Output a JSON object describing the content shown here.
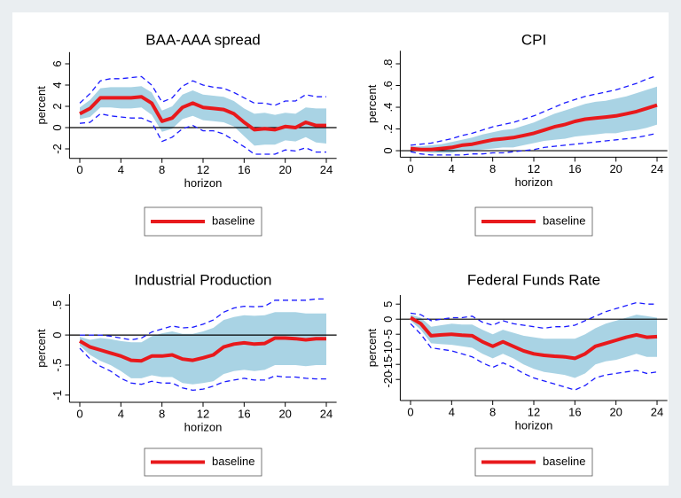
{
  "chart_data": [
    {
      "type": "line",
      "title": "BAA-AAA spread",
      "xlabel": "horizon",
      "ylabel": "percent",
      "x": [
        0,
        1,
        2,
        3,
        4,
        5,
        6,
        7,
        8,
        9,
        10,
        11,
        12,
        13,
        14,
        15,
        16,
        17,
        18,
        19,
        20,
        21,
        22,
        23,
        24
      ],
      "xlim": [
        -1,
        25
      ],
      "ylim": [
        -2.9,
        7.1
      ],
      "xticks": [
        0,
        4,
        8,
        12,
        16,
        20,
        24
      ],
      "yticks": [
        -2,
        0,
        2,
        4,
        6
      ],
      "yline": 0,
      "series": [
        {
          "name": "baseline",
          "color": "#e8191c",
          "values": [
            1.3,
            1.8,
            2.8,
            2.8,
            2.8,
            2.8,
            2.9,
            2.3,
            0.6,
            0.9,
            1.9,
            2.3,
            1.9,
            1.8,
            1.7,
            1.3,
            0.5,
            -0.2,
            -0.1,
            -0.2,
            0.1,
            0.0,
            0.5,
            0.2,
            0.2
          ]
        }
      ],
      "band": {
        "color": "#a9d3e4",
        "upper": [
          1.9,
          2.6,
          3.7,
          3.8,
          3.8,
          3.8,
          3.9,
          3.3,
          1.6,
          2,
          3.1,
          3.5,
          3.1,
          3,
          2.9,
          2.5,
          1.8,
          1.3,
          1.4,
          1.2,
          1.4,
          1.3,
          1.9,
          1.8,
          1.8
        ],
        "lower": [
          0.8,
          1,
          1.9,
          1.9,
          1.8,
          1.8,
          1.9,
          1.2,
          -0.4,
          -0.1,
          0.8,
          1.1,
          0.7,
          0.6,
          0.5,
          0.1,
          -0.8,
          -1.7,
          -1.6,
          -1.6,
          -1.2,
          -1.3,
          -0.9,
          -1.4,
          -1.5
        ]
      },
      "interval": {
        "color": "#1a1aff",
        "upper": [
          2.3,
          3.2,
          4.4,
          4.6,
          4.6,
          4.7,
          4.8,
          4,
          2.4,
          2.8,
          3.9,
          4.4,
          4,
          3.8,
          3.7,
          3.3,
          2.8,
          2.3,
          2.3,
          2.1,
          2.5,
          2.5,
          3.1,
          2.9,
          2.9
        ],
        "lower": [
          0.4,
          0.5,
          1.3,
          1.1,
          1,
          0.9,
          0.9,
          0.5,
          -1.3,
          -0.9,
          -0.1,
          0.2,
          -0.3,
          -0.3,
          -0.6,
          -1.2,
          -1.8,
          -2.5,
          -2.5,
          -2.5,
          -2.1,
          -2.2,
          -1.9,
          -2.3,
          -2.3
        ]
      }
    },
    {
      "type": "line",
      "title": "CPI",
      "xlabel": "horizon",
      "ylabel": "percent",
      "x": [
        0,
        1,
        2,
        3,
        4,
        5,
        6,
        7,
        8,
        9,
        10,
        11,
        12,
        13,
        14,
        15,
        16,
        17,
        18,
        19,
        20,
        21,
        22,
        23,
        24
      ],
      "xlim": [
        -1,
        25
      ],
      "ylim": [
        -0.06,
        0.92
      ],
      "xticks": [
        0,
        4,
        8,
        12,
        16,
        20,
        24
      ],
      "yticks": [
        0,
        {
          "value": 0.2,
          "label": ".2"
        },
        {
          "value": 0.4,
          "label": ".4"
        },
        {
          "value": 0.6,
          "label": ".6"
        },
        {
          "value": 0.8,
          "label": ".8"
        }
      ],
      "yline": 0,
      "series": [
        {
          "name": "baseline",
          "color": "#e8191c",
          "values": [
            0.02,
            0.01,
            0.01,
            0.02,
            0.03,
            0.05,
            0.06,
            0.08,
            0.1,
            0.11,
            0.12,
            0.14,
            0.16,
            0.19,
            0.22,
            0.24,
            0.27,
            0.29,
            0.3,
            0.31,
            0.32,
            0.34,
            0.36,
            0.39,
            0.42
          ]
        }
      ],
      "band": {
        "color": "#a9d3e4",
        "upper": [
          0.04,
          0.04,
          0.05,
          0.06,
          0.08,
          0.1,
          0.12,
          0.15,
          0.17,
          0.19,
          0.2,
          0.23,
          0.26,
          0.3,
          0.34,
          0.37,
          0.4,
          0.43,
          0.45,
          0.46,
          0.48,
          0.5,
          0.53,
          0.56,
          0.59
        ],
        "lower": [
          0,
          -0.01,
          -0.02,
          -0.02,
          -0.02,
          0,
          0,
          0.01,
          0.02,
          0.03,
          0.03,
          0.05,
          0.07,
          0.09,
          0.1,
          0.11,
          0.13,
          0.14,
          0.15,
          0.16,
          0.16,
          0.18,
          0.19,
          0.21,
          0.24
        ]
      },
      "interval": {
        "color": "#1a1aff",
        "upper": [
          0.05,
          0.06,
          0.07,
          0.09,
          0.11,
          0.14,
          0.16,
          0.19,
          0.22,
          0.24,
          0.26,
          0.29,
          0.32,
          0.36,
          0.4,
          0.44,
          0.47,
          0.5,
          0.52,
          0.54,
          0.56,
          0.59,
          0.62,
          0.66,
          0.69
        ],
        "lower": [
          -0.01,
          -0.03,
          -0.04,
          -0.04,
          -0.04,
          -0.04,
          -0.03,
          -0.03,
          -0.02,
          -0.02,
          -0.01,
          0,
          0.01,
          0.03,
          0.04,
          0.05,
          0.06,
          0.07,
          0.08,
          0.09,
          0.1,
          0.11,
          0.12,
          0.14,
          0.16
        ]
      }
    },
    {
      "type": "line",
      "title": "Industrial Production",
      "xlabel": "horizon",
      "ylabel": "percent",
      "x": [
        0,
        1,
        2,
        3,
        4,
        5,
        6,
        7,
        8,
        9,
        10,
        11,
        12,
        13,
        14,
        15,
        16,
        17,
        18,
        19,
        20,
        21,
        22,
        23,
        24
      ],
      "xlim": [
        -1,
        25
      ],
      "ylim": [
        -1.12,
        0.68
      ],
      "xticks": [
        0,
        4,
        8,
        12,
        16,
        20,
        24
      ],
      "yticks": [
        -1,
        {
          "value": -0.5,
          "label": "-.5"
        },
        0,
        {
          "value": 0.5,
          "label": ".5"
        }
      ],
      "yline": 0,
      "series": [
        {
          "name": "baseline",
          "color": "#e8191c",
          "values": [
            -0.1,
            -0.2,
            -0.25,
            -0.3,
            -0.35,
            -0.42,
            -0.43,
            -0.35,
            -0.35,
            -0.33,
            -0.4,
            -0.42,
            -0.38,
            -0.33,
            -0.2,
            -0.15,
            -0.13,
            -0.15,
            -0.14,
            -0.05,
            -0.05,
            -0.06,
            -0.08,
            -0.06,
            -0.06
          ]
        }
      ],
      "band": {
        "color": "#a9d3e4",
        "upper": [
          -0.03,
          -0.08,
          -0.05,
          -0.07,
          -0.1,
          -0.12,
          -0.12,
          -0.02,
          0.03,
          0.06,
          0.02,
          0.02,
          0.06,
          0.12,
          0.25,
          0.3,
          0.33,
          0.32,
          0.33,
          0.38,
          0.38,
          0.38,
          0.36,
          0.36,
          0.36
        ],
        "lower": [
          -0.18,
          -0.33,
          -0.43,
          -0.5,
          -0.6,
          -0.72,
          -0.72,
          -0.67,
          -0.7,
          -0.7,
          -0.8,
          -0.82,
          -0.8,
          -0.77,
          -0.65,
          -0.6,
          -0.58,
          -0.6,
          -0.58,
          -0.5,
          -0.5,
          -0.5,
          -0.52,
          -0.5,
          -0.5
        ]
      },
      "interval": {
        "color": "#1a1aff",
        "upper": [
          0,
          0,
          0,
          -0.02,
          -0.05,
          -0.08,
          -0.05,
          0.05,
          0.1,
          0.15,
          0.12,
          0.13,
          0.18,
          0.25,
          0.38,
          0.45,
          0.48,
          0.47,
          0.48,
          0.58,
          0.58,
          0.58,
          0.58,
          0.6,
          0.6
        ],
        "lower": [
          -0.22,
          -0.4,
          -0.52,
          -0.6,
          -0.72,
          -0.8,
          -0.82,
          -0.77,
          -0.8,
          -0.8,
          -0.88,
          -0.92,
          -0.9,
          -0.85,
          -0.78,
          -0.75,
          -0.72,
          -0.75,
          -0.75,
          -0.68,
          -0.7,
          -0.7,
          -0.72,
          -0.73,
          -0.73
        ]
      }
    },
    {
      "type": "line",
      "title": "Federal Funds Rate",
      "xlabel": "horizon",
      "ylabel": "percent",
      "x": [
        0,
        1,
        2,
        3,
        4,
        5,
        6,
        7,
        8,
        9,
        10,
        11,
        12,
        13,
        14,
        15,
        16,
        17,
        18,
        19,
        20,
        21,
        22,
        23,
        24
      ],
      "xlim": [
        -1,
        25
      ],
      "ylim": [
        -27,
        8
      ],
      "xticks": [
        0,
        4,
        8,
        12,
        16,
        20,
        24
      ],
      "yticks": [
        -20,
        -15,
        -10,
        -5,
        0,
        5
      ],
      "yline": 0,
      "series": [
        {
          "name": "baseline",
          "color": "#e8191c",
          "values": [
            0.5,
            -1.5,
            -5.5,
            -5.2,
            -5,
            -5.3,
            -5.5,
            -7.5,
            -9,
            -7.5,
            -9,
            -10.5,
            -11.5,
            -12,
            -12.3,
            -12.5,
            -13,
            -11.5,
            -9,
            -8,
            -7,
            -6,
            -5.2,
            -6,
            -5.8
          ]
        }
      ],
      "band": {
        "color": "#a9d3e4",
        "upper": [
          1.5,
          0.5,
          -2.5,
          -2,
          -1.5,
          -1.8,
          -1.8,
          -3.5,
          -5,
          -3.5,
          -4.5,
          -5.5,
          -6,
          -6.5,
          -6.5,
          -6.5,
          -6.5,
          -5,
          -3,
          -1.5,
          -0.5,
          0.5,
          1.5,
          1,
          0.5
        ],
        "lower": [
          -0.5,
          -3.5,
          -8,
          -8.3,
          -8.5,
          -9,
          -9.5,
          -11.5,
          -13,
          -11.5,
          -13,
          -15,
          -16.5,
          -17.5,
          -18,
          -18.5,
          -19.5,
          -18,
          -15,
          -14,
          -13.5,
          -12.5,
          -11.5,
          -12.5,
          -12.5
        ]
      },
      "interval": {
        "color": "#1a1aff",
        "upper": [
          2,
          1.5,
          -0.5,
          0,
          0.5,
          0.5,
          1,
          -1,
          -2,
          -0.5,
          -1.5,
          -2,
          -2.5,
          -3,
          -2.5,
          -2.5,
          -2,
          -0.5,
          1,
          2.5,
          3.5,
          4.5,
          5.5,
          5,
          5
        ],
        "lower": [
          -1.5,
          -5,
          -9.5,
          -10,
          -10.5,
          -11.5,
          -12.5,
          -14.5,
          -16,
          -14.5,
          -16,
          -18,
          -19.5,
          -20.5,
          -21.5,
          -22.5,
          -23.5,
          -22,
          -19.5,
          -18.5,
          -18,
          -17.5,
          -17,
          -18,
          -17.5
        ]
      }
    }
  ]
}
